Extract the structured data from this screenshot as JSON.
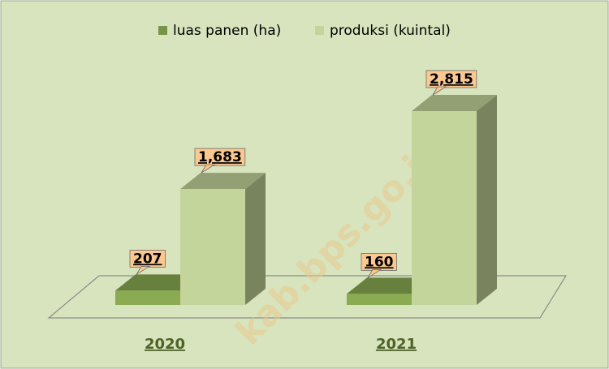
{
  "chart_data": {
    "type": "bar3d",
    "categories": [
      "2020",
      "2021"
    ],
    "series": [
      {
        "name": "luas panen (ha)",
        "color": "#8aab52",
        "values": [
          207,
          160
        ]
      },
      {
        "name": "produksi (kuintal)",
        "color": "#c3d59a",
        "values": [
          1683,
          2815
        ],
        "value_labels": [
          "1,683",
          "2,815"
        ]
      }
    ],
    "watermark": "kab.bps.go.id"
  }
}
